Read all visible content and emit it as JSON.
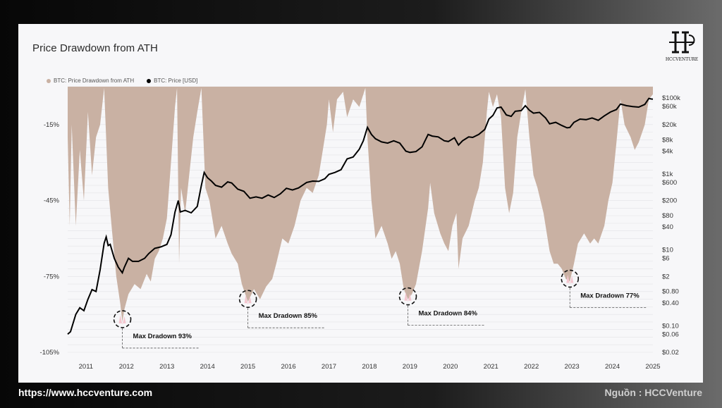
{
  "page": {
    "title": "Price Drawdown from ATH",
    "logo_text": "HCCVENTURE",
    "footer_left": "https://www.hccventure.com",
    "footer_right": "Nguồn : HCCVenture"
  },
  "colors": {
    "drawdown_fill": "#c9b1a3",
    "price_line": "#000000",
    "max_highlight": "#f4c6cf",
    "panel": "#f7f7f9"
  },
  "chart_data": {
    "type": "area",
    "legend": [
      {
        "name": "BTC: Price Drawdown from ATH",
        "color": "#c9b1a3"
      },
      {
        "name": "BTC: Price [USD]",
        "color": "#000000"
      }
    ],
    "legend_position": "top-left",
    "x_ticks": [
      "2011",
      "2012",
      "2013",
      "2014",
      "2015",
      "2016",
      "2017",
      "2018",
      "2019",
      "2020",
      "2021",
      "2022",
      "2023",
      "2024",
      "2025"
    ],
    "x_range": [
      2010.55,
      2025.0
    ],
    "y_left": {
      "ticks": [
        {
          "value": -15,
          "label": "-15%"
        },
        {
          "value": -45,
          "label": "-45%"
        },
        {
          "value": -75,
          "label": "-75%"
        },
        {
          "value": -105,
          "label": "-105%"
        }
      ],
      "range": [
        -105,
        0
      ]
    },
    "y_right": {
      "scale": "log",
      "ticks": [
        {
          "value": 100000,
          "label": "$100k"
        },
        {
          "value": 60000,
          "label": "$60k"
        },
        {
          "value": 20000,
          "label": "$20k"
        },
        {
          "value": 8000,
          "label": "$8k"
        },
        {
          "value": 4000,
          "label": "$4k"
        },
        {
          "value": 1000,
          "label": "$1k"
        },
        {
          "value": 600,
          "label": "$600"
        },
        {
          "value": 200,
          "label": "$200"
        },
        {
          "value": 80,
          "label": "$80"
        },
        {
          "value": 40,
          "label": "$40"
        },
        {
          "value": 10,
          "label": "$10"
        },
        {
          "value": 6,
          "label": "$6"
        },
        {
          "value": 2,
          "label": "$2"
        },
        {
          "value": 0.8,
          "label": "$0.80"
        },
        {
          "value": 0.4,
          "label": "$0.40"
        },
        {
          "value": 0.1,
          "label": "$0.10"
        },
        {
          "value": 0.06,
          "label": "$0.06"
        },
        {
          "value": 0.02,
          "label": "$0.02"
        }
      ],
      "range": [
        0.02,
        200000
      ]
    },
    "drawdown_series": {
      "name": "BTC: Price Drawdown from ATH",
      "points": [
        [
          2010.55,
          -20
        ],
        [
          2010.6,
          -55
        ],
        [
          2010.65,
          -15
        ],
        [
          2010.75,
          -55
        ],
        [
          2010.85,
          -25
        ],
        [
          2010.95,
          -45
        ],
        [
          2011.05,
          -10
        ],
        [
          2011.15,
          -35
        ],
        [
          2011.25,
          -20
        ],
        [
          2011.35,
          -15
        ],
        [
          2011.45,
          -0.5
        ],
        [
          2011.55,
          -40
        ],
        [
          2011.65,
          -58
        ],
        [
          2011.75,
          -75
        ],
        [
          2011.85,
          -86
        ],
        [
          2011.9,
          -93
        ],
        [
          2011.95,
          -88
        ],
        [
          2012.05,
          -82
        ],
        [
          2012.2,
          -78
        ],
        [
          2012.35,
          -80
        ],
        [
          2012.5,
          -74
        ],
        [
          2012.6,
          -77
        ],
        [
          2012.7,
          -68
        ],
        [
          2012.8,
          -65
        ],
        [
          2012.9,
          -60
        ],
        [
          2013.0,
          -52
        ],
        [
          2013.1,
          -30
        ],
        [
          2013.2,
          -8
        ],
        [
          2013.25,
          -0.5
        ],
        [
          2013.3,
          -70
        ],
        [
          2013.35,
          -40
        ],
        [
          2013.45,
          -50
        ],
        [
          2013.55,
          -35
        ],
        [
          2013.65,
          -20
        ],
        [
          2013.75,
          -10
        ],
        [
          2013.85,
          -0.5
        ],
        [
          2013.95,
          -40
        ],
        [
          2014.05,
          -45
        ],
        [
          2014.2,
          -60
        ],
        [
          2014.35,
          -55
        ],
        [
          2014.5,
          -62
        ],
        [
          2014.6,
          -66
        ],
        [
          2014.75,
          -70
        ],
        [
          2014.85,
          -78
        ],
        [
          2015.0,
          -85
        ],
        [
          2015.15,
          -80
        ],
        [
          2015.3,
          -84
        ],
        [
          2015.45,
          -79
        ],
        [
          2015.6,
          -76
        ],
        [
          2015.7,
          -70
        ],
        [
          2015.85,
          -60
        ],
        [
          2016.0,
          -62
        ],
        [
          2016.15,
          -55
        ],
        [
          2016.3,
          -45
        ],
        [
          2016.45,
          -40
        ],
        [
          2016.6,
          -42
        ],
        [
          2016.75,
          -35
        ],
        [
          2016.85,
          -25
        ],
        [
          2016.95,
          -15
        ],
        [
          2017.0,
          -5
        ],
        [
          2017.1,
          -18
        ],
        [
          2017.2,
          -5
        ],
        [
          2017.35,
          -2
        ],
        [
          2017.45,
          -12
        ],
        [
          2017.6,
          -5
        ],
        [
          2017.75,
          -8
        ],
        [
          2017.9,
          -0.5
        ],
        [
          2017.95,
          -20
        ],
        [
          2018.05,
          -45
        ],
        [
          2018.15,
          -60
        ],
        [
          2018.3,
          -55
        ],
        [
          2018.45,
          -62
        ],
        [
          2018.55,
          -68
        ],
        [
          2018.65,
          -65
        ],
        [
          2018.75,
          -70
        ],
        [
          2018.85,
          -80
        ],
        [
          2018.95,
          -84
        ],
        [
          2019.05,
          -82
        ],
        [
          2019.15,
          -78
        ],
        [
          2019.3,
          -65
        ],
        [
          2019.45,
          -48
        ],
        [
          2019.5,
          -38
        ],
        [
          2019.6,
          -50
        ],
        [
          2019.75,
          -58
        ],
        [
          2019.85,
          -62
        ],
        [
          2019.95,
          -65
        ],
        [
          2020.05,
          -55
        ],
        [
          2020.15,
          -50
        ],
        [
          2020.2,
          -72
        ],
        [
          2020.3,
          -60
        ],
        [
          2020.45,
          -55
        ],
        [
          2020.6,
          -45
        ],
        [
          2020.7,
          -40
        ],
        [
          2020.8,
          -30
        ],
        [
          2020.9,
          -10
        ],
        [
          2020.95,
          -2
        ],
        [
          2021.05,
          -8
        ],
        [
          2021.15,
          -3
        ],
        [
          2021.25,
          -12
        ],
        [
          2021.35,
          -40
        ],
        [
          2021.45,
          -50
        ],
        [
          2021.55,
          -42
        ],
        [
          2021.65,
          -20
        ],
        [
          2021.75,
          -10
        ],
        [
          2021.85,
          -1
        ],
        [
          2021.95,
          -20
        ],
        [
          2022.05,
          -35
        ],
        [
          2022.15,
          -40
        ],
        [
          2022.3,
          -50
        ],
        [
          2022.45,
          -65
        ],
        [
          2022.55,
          -70
        ],
        [
          2022.65,
          -70
        ],
        [
          2022.75,
          -72
        ],
        [
          2022.85,
          -76
        ],
        [
          2022.95,
          -77
        ],
        [
          2023.05,
          -70
        ],
        [
          2023.15,
          -62
        ],
        [
          2023.3,
          -58
        ],
        [
          2023.45,
          -62
        ],
        [
          2023.55,
          -60
        ],
        [
          2023.65,
          -62
        ],
        [
          2023.8,
          -55
        ],
        [
          2023.9,
          -45
        ],
        [
          2024.0,
          -38
        ],
        [
          2024.1,
          -22
        ],
        [
          2024.2,
          -5
        ],
        [
          2024.3,
          -15
        ],
        [
          2024.45,
          -20
        ],
        [
          2024.55,
          -25
        ],
        [
          2024.65,
          -22
        ],
        [
          2024.8,
          -15
        ],
        [
          2024.9,
          -5
        ],
        [
          2025.0,
          -3
        ]
      ]
    },
    "price_series": {
      "name": "BTC: Price [USD]",
      "points": [
        [
          2010.55,
          0.06
        ],
        [
          2010.62,
          0.07
        ],
        [
          2010.75,
          0.2
        ],
        [
          2010.85,
          0.3
        ],
        [
          2010.95,
          0.25
        ],
        [
          2011.05,
          0.5
        ],
        [
          2011.15,
          0.9
        ],
        [
          2011.25,
          0.8
        ],
        [
          2011.35,
          3
        ],
        [
          2011.45,
          15
        ],
        [
          2011.5,
          22
        ],
        [
          2011.55,
          13
        ],
        [
          2011.6,
          14
        ],
        [
          2011.7,
          6
        ],
        [
          2011.8,
          3.5
        ],
        [
          2011.9,
          2.5
        ],
        [
          2011.95,
          3.5
        ],
        [
          2012.05,
          6
        ],
        [
          2012.15,
          5
        ],
        [
          2012.3,
          5
        ],
        [
          2012.45,
          6
        ],
        [
          2012.55,
          8
        ],
        [
          2012.7,
          11
        ],
        [
          2012.85,
          12
        ],
        [
          2013.0,
          14
        ],
        [
          2013.1,
          25
        ],
        [
          2013.2,
          100
        ],
        [
          2013.28,
          200
        ],
        [
          2013.33,
          100
        ],
        [
          2013.45,
          110
        ],
        [
          2013.6,
          95
        ],
        [
          2013.75,
          140
        ],
        [
          2013.85,
          500
        ],
        [
          2013.92,
          1100
        ],
        [
          2014.0,
          800
        ],
        [
          2014.1,
          650
        ],
        [
          2014.2,
          500
        ],
        [
          2014.35,
          450
        ],
        [
          2014.5,
          620
        ],
        [
          2014.6,
          580
        ],
        [
          2014.75,
          400
        ],
        [
          2014.9,
          350
        ],
        [
          2015.05,
          230
        ],
        [
          2015.2,
          250
        ],
        [
          2015.35,
          230
        ],
        [
          2015.5,
          280
        ],
        [
          2015.65,
          240
        ],
        [
          2015.8,
          300
        ],
        [
          2015.95,
          420
        ],
        [
          2016.1,
          380
        ],
        [
          2016.25,
          430
        ],
        [
          2016.45,
          600
        ],
        [
          2016.6,
          650
        ],
        [
          2016.75,
          640
        ],
        [
          2016.9,
          750
        ],
        [
          2017.0,
          980
        ],
        [
          2017.15,
          1100
        ],
        [
          2017.3,
          1300
        ],
        [
          2017.45,
          2500
        ],
        [
          2017.6,
          2800
        ],
        [
          2017.75,
          4500
        ],
        [
          2017.85,
          7500
        ],
        [
          2017.95,
          17000
        ],
        [
          2018.05,
          11000
        ],
        [
          2018.15,
          8500
        ],
        [
          2018.3,
          7000
        ],
        [
          2018.45,
          6500
        ],
        [
          2018.6,
          7500
        ],
        [
          2018.75,
          6500
        ],
        [
          2018.9,
          4000
        ],
        [
          2019.0,
          3700
        ],
        [
          2019.15,
          3900
        ],
        [
          2019.3,
          5200
        ],
        [
          2019.45,
          11000
        ],
        [
          2019.55,
          10000
        ],
        [
          2019.7,
          9500
        ],
        [
          2019.85,
          7500
        ],
        [
          2019.95,
          7200
        ],
        [
          2020.1,
          9000
        ],
        [
          2020.2,
          5800
        ],
        [
          2020.3,
          7500
        ],
        [
          2020.45,
          9500
        ],
        [
          2020.55,
          9200
        ],
        [
          2020.7,
          11000
        ],
        [
          2020.85,
          15000
        ],
        [
          2020.95,
          28000
        ],
        [
          2021.05,
          35000
        ],
        [
          2021.15,
          55000
        ],
        [
          2021.25,
          58000
        ],
        [
          2021.38,
          36000
        ],
        [
          2021.5,
          33000
        ],
        [
          2021.6,
          45000
        ],
        [
          2021.75,
          47000
        ],
        [
          2021.85,
          63000
        ],
        [
          2021.95,
          48000
        ],
        [
          2022.05,
          40000
        ],
        [
          2022.2,
          42000
        ],
        [
          2022.35,
          30000
        ],
        [
          2022.45,
          21000
        ],
        [
          2022.6,
          23000
        ],
        [
          2022.75,
          19000
        ],
        [
          2022.88,
          16500
        ],
        [
          2022.95,
          16800
        ],
        [
          2023.05,
          23000
        ],
        [
          2023.2,
          28000
        ],
        [
          2023.35,
          27000
        ],
        [
          2023.5,
          30000
        ],
        [
          2023.65,
          26000
        ],
        [
          2023.8,
          34000
        ],
        [
          2023.95,
          43000
        ],
        [
          2024.1,
          50000
        ],
        [
          2024.2,
          70000
        ],
        [
          2024.35,
          63000
        ],
        [
          2024.5,
          60000
        ],
        [
          2024.65,
          58000
        ],
        [
          2024.8,
          68000
        ],
        [
          2024.9,
          98000
        ],
        [
          2024.95,
          95000
        ],
        [
          2025.0,
          94000
        ]
      ]
    },
    "annotations": [
      {
        "label": "Max Dradown 93%",
        "x": 2011.9,
        "y": -93
      },
      {
        "label": "Max Dradown 85%",
        "x": 2015.0,
        "y": -85
      },
      {
        "label": "Max Dradown 84%",
        "x": 2018.95,
        "y": -84
      },
      {
        "label": "Max Dradown 77%",
        "x": 2022.95,
        "y": -77
      }
    ]
  }
}
